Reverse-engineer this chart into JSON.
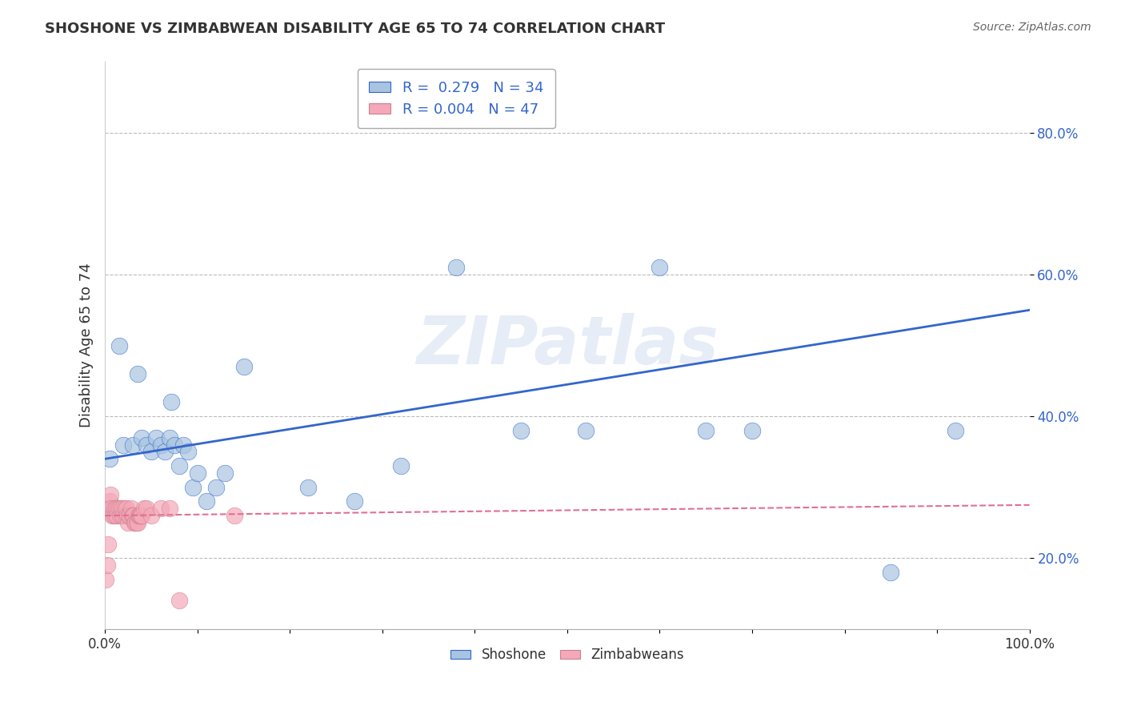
{
  "title": "SHOSHONE VS ZIMBABWEAN DISABILITY AGE 65 TO 74 CORRELATION CHART",
  "source": "Source: ZipAtlas.com",
  "ylabel": "Disability Age 65 to 74",
  "watermark": "ZIPatlas",
  "legend_blue_label": "Shoshone",
  "legend_pink_label": "Zimbabweans",
  "R_blue": 0.279,
  "N_blue": 34,
  "R_pink": 0.004,
  "N_pink": 47,
  "blue_scatter_color": "#A8C4E0",
  "pink_scatter_color": "#F4A8B8",
  "blue_line_color": "#3366CC",
  "pink_line_color": "#E07090",
  "shoshone_x": [
    0.5,
    2.0,
    3.0,
    4.0,
    4.5,
    5.0,
    5.5,
    6.0,
    6.5,
    7.0,
    7.5,
    8.0,
    8.5,
    9.0,
    9.5,
    10.0,
    11.0,
    12.0,
    15.0,
    22.0,
    27.0,
    32.0,
    38.0,
    45.0,
    52.0,
    60.0,
    65.0,
    70.0,
    85.0,
    92.0,
    1.5,
    3.5,
    7.2,
    13.0
  ],
  "shoshone_y": [
    34.0,
    36.0,
    36.0,
    37.0,
    36.0,
    35.0,
    37.0,
    36.0,
    35.0,
    37.0,
    36.0,
    33.0,
    36.0,
    35.0,
    30.0,
    32.0,
    28.0,
    30.0,
    47.0,
    30.0,
    28.0,
    33.0,
    61.0,
    38.0,
    38.0,
    61.0,
    38.0,
    38.0,
    18.0,
    38.0,
    50.0,
    46.0,
    42.0,
    32.0
  ],
  "zimbabwean_x": [
    0.1,
    0.2,
    0.3,
    0.4,
    0.5,
    0.6,
    0.7,
    0.8,
    0.9,
    1.0,
    1.1,
    1.2,
    1.3,
    1.4,
    1.5,
    1.6,
    1.7,
    1.8,
    1.9,
    2.0,
    2.1,
    2.2,
    2.3,
    2.4,
    2.5,
    2.6,
    2.7,
    2.8,
    2.9,
    3.0,
    3.1,
    3.2,
    3.3,
    3.4,
    3.5,
    3.6,
    3.7,
    3.8,
    3.9,
    4.0,
    4.2,
    4.5,
    5.0,
    6.0,
    7.0,
    8.0,
    14.0
  ],
  "zimbabwean_y": [
    17.0,
    19.0,
    22.0,
    27.0,
    28.0,
    29.0,
    27.0,
    26.0,
    26.0,
    27.0,
    26.0,
    27.0,
    26.0,
    27.0,
    27.0,
    26.0,
    27.0,
    26.0,
    27.0,
    26.0,
    27.0,
    26.0,
    27.0,
    26.0,
    25.0,
    26.0,
    26.0,
    27.0,
    26.0,
    26.0,
    26.0,
    25.0,
    25.0,
    25.0,
    25.0,
    26.0,
    26.0,
    26.0,
    26.0,
    26.0,
    27.0,
    27.0,
    26.0,
    27.0,
    27.0,
    14.0,
    26.0
  ],
  "xlim": [
    0,
    100
  ],
  "ylim_min": 10,
  "ylim_max": 90,
  "yticks": [
    20.0,
    40.0,
    60.0,
    80.0
  ],
  "ytick_labels": [
    "20.0%",
    "40.0%",
    "60.0%",
    "80.0%"
  ],
  "xticks": [
    0,
    10,
    20,
    30,
    40,
    50,
    60,
    70,
    80,
    90,
    100
  ],
  "blue_regr_x0": 0,
  "blue_regr_y0": 34.0,
  "blue_regr_x1": 100,
  "blue_regr_y1": 55.0,
  "pink_regr_x0": 0,
  "pink_regr_y0": 26.0,
  "pink_regr_x1": 100,
  "pink_regr_y1": 27.5,
  "background_color": "#FFFFFF",
  "grid_color": "#BBBBBB"
}
